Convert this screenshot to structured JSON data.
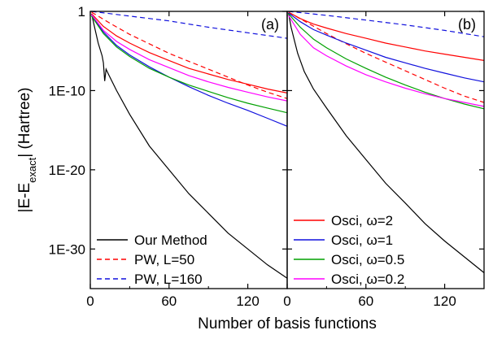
{
  "chart_data": {
    "type": "line",
    "xlabel": "Number of basis functions",
    "ylabel_parts": {
      "main": "|E-E",
      "sub": "exact",
      "tail": "| (Hartree)"
    },
    "xlim": [
      0,
      150
    ],
    "ylim_log10": [
      -35,
      0
    ],
    "y_scale": "log",
    "x_ticks": [
      0,
      60,
      120
    ],
    "y_ticks": [
      {
        "exp": 0,
        "label": "1"
      },
      {
        "exp": -10,
        "label": "1E-10"
      },
      {
        "exp": -20,
        "label": "1E-20"
      },
      {
        "exp": -30,
        "label": "1E-30"
      }
    ],
    "colors": {
      "black": "#000000",
      "red": "#ff0000",
      "blue": "#1010dd",
      "green": "#00a000",
      "magenta": "#ff00ff"
    },
    "panels": [
      {
        "label": "(a)",
        "legend_position": "bottom-left",
        "series": [
          {
            "name": "Our Method",
            "color": "#000000",
            "dash": "solid",
            "points": [
              [
                1,
                -0.3
              ],
              [
                3,
                -1.8
              ],
              [
                6,
                -4.0
              ],
              [
                9,
                -5.6
              ],
              [
                10,
                -6.5
              ],
              [
                11,
                -8.8
              ],
              [
                12,
                -7.3
              ],
              [
                14,
                -8.0
              ],
              [
                20,
                -10.0
              ],
              [
                30,
                -13.0
              ],
              [
                45,
                -17.0
              ],
              [
                60,
                -20.0
              ],
              [
                75,
                -23.0
              ],
              [
                90,
                -25.5
              ],
              [
                105,
                -28.0
              ],
              [
                120,
                -30.0
              ],
              [
                135,
                -32.0
              ],
              [
                150,
                -33.7
              ]
            ]
          },
          {
            "name": "PW, L=50",
            "color": "#ff0000",
            "dash": "dashed",
            "points": [
              [
                1,
                -0.1
              ],
              [
                15,
                -1.5
              ],
              [
                30,
                -2.9
              ],
              [
                45,
                -4.1
              ],
              [
                60,
                -5.3
              ],
              [
                75,
                -6.3
              ],
              [
                90,
                -7.3
              ],
              [
                105,
                -8.3
              ],
              [
                120,
                -9.3
              ],
              [
                135,
                -10.2
              ],
              [
                150,
                -11.0
              ]
            ]
          },
          {
            "name": "PW, L=160",
            "color": "#1010dd",
            "dash": "dashed",
            "points": [
              [
                1,
                0.0
              ],
              [
                30,
                -0.6
              ],
              [
                60,
                -1.2
              ],
              [
                90,
                -2.0
              ],
              [
                120,
                -2.7
              ],
              [
                150,
                -3.4
              ]
            ]
          },
          {
            "name": "",
            "color": "#ff0000",
            "dash": "solid",
            "points": [
              [
                1,
                -0.3
              ],
              [
                10,
                -1.9
              ],
              [
                20,
                -3.1
              ],
              [
                30,
                -4.0
              ],
              [
                45,
                -5.2
              ],
              [
                60,
                -6.2
              ],
              [
                75,
                -7.2
              ],
              [
                90,
                -7.9
              ],
              [
                105,
                -8.6
              ],
              [
                120,
                -9.2
              ],
              [
                135,
                -9.8
              ],
              [
                150,
                -10.3
              ]
            ]
          },
          {
            "name": "",
            "color": "#1010dd",
            "dash": "solid",
            "points": [
              [
                1,
                -0.5
              ],
              [
                10,
                -2.6
              ],
              [
                20,
                -4.3
              ],
              [
                30,
                -5.5
              ],
              [
                45,
                -7.0
              ],
              [
                60,
                -8.3
              ],
              [
                75,
                -9.5
              ],
              [
                90,
                -10.6
              ],
              [
                105,
                -11.6
              ],
              [
                120,
                -12.5
              ],
              [
                135,
                -13.5
              ],
              [
                150,
                -14.5
              ]
            ]
          },
          {
            "name": "",
            "color": "#00a000",
            "dash": "solid",
            "points": [
              [
                1,
                -0.6
              ],
              [
                10,
                -2.8
              ],
              [
                20,
                -4.5
              ],
              [
                30,
                -5.7
              ],
              [
                45,
                -7.2
              ],
              [
                60,
                -8.3
              ],
              [
                75,
                -9.3
              ],
              [
                90,
                -10.1
              ],
              [
                105,
                -10.9
              ],
              [
                120,
                -11.6
              ],
              [
                135,
                -12.2
              ],
              [
                150,
                -12.8
              ]
            ]
          },
          {
            "name": "",
            "color": "#ff00ff",
            "dash": "solid",
            "points": [
              [
                1,
                -0.4
              ],
              [
                10,
                -2.4
              ],
              [
                20,
                -3.8
              ],
              [
                30,
                -4.8
              ],
              [
                45,
                -6.1
              ],
              [
                60,
                -7.1
              ],
              [
                75,
                -8.1
              ],
              [
                90,
                -8.9
              ],
              [
                105,
                -9.6
              ],
              [
                120,
                -10.2
              ],
              [
                135,
                -10.8
              ],
              [
                150,
                -11.3
              ]
            ]
          }
        ]
      },
      {
        "label": "(b)",
        "legend_position": "bottom-left",
        "series": [
          {
            "name": "",
            "color": "#000000",
            "dash": "solid",
            "points": [
              [
                1,
                -0.2
              ],
              [
                3,
                -2.0
              ],
              [
                6,
                -4.0
              ],
              [
                8,
                -5.3
              ],
              [
                10,
                -6.2
              ],
              [
                13,
                -7.6
              ],
              [
                20,
                -9.8
              ],
              [
                30,
                -12.2
              ],
              [
                45,
                -15.7
              ],
              [
                60,
                -18.7
              ],
              [
                75,
                -21.7
              ],
              [
                90,
                -24.2
              ],
              [
                105,
                -26.8
              ],
              [
                120,
                -29.0
              ],
              [
                135,
                -31.0
              ],
              [
                150,
                -33.0
              ]
            ]
          },
          {
            "name": "",
            "color": "#ff0000",
            "dash": "dashed",
            "points": [
              [
                1,
                -0.1
              ],
              [
                15,
                -1.4
              ],
              [
                30,
                -2.8
              ],
              [
                45,
                -4.1
              ],
              [
                60,
                -5.3
              ],
              [
                75,
                -6.4
              ],
              [
                90,
                -7.5
              ],
              [
                105,
                -8.6
              ],
              [
                120,
                -9.7
              ],
              [
                135,
                -10.7
              ],
              [
                150,
                -11.5
              ]
            ]
          },
          {
            "name": "",
            "color": "#1010dd",
            "dash": "dashed",
            "points": [
              [
                1,
                0.0
              ],
              [
                30,
                -0.5
              ],
              [
                60,
                -1.1
              ],
              [
                90,
                -1.7
              ],
              [
                120,
                -2.4
              ],
              [
                150,
                -3.2
              ]
            ]
          },
          {
            "name": "Osci, ω=2",
            "color": "#ff0000",
            "dash": "solid",
            "points": [
              [
                1,
                -0.1
              ],
              [
                10,
                -0.9
              ],
              [
                20,
                -1.6
              ],
              [
                30,
                -2.1
              ],
              [
                45,
                -2.8
              ],
              [
                60,
                -3.4
              ],
              [
                75,
                -4.0
              ],
              [
                90,
                -4.5
              ],
              [
                105,
                -5.0
              ],
              [
                120,
                -5.4
              ],
              [
                135,
                -5.8
              ],
              [
                150,
                -6.2
              ]
            ]
          },
          {
            "name": "Osci, ω=1",
            "color": "#1010dd",
            "dash": "solid",
            "points": [
              [
                1,
                -0.2
              ],
              [
                10,
                -1.3
              ],
              [
                20,
                -2.3
              ],
              [
                30,
                -3.0
              ],
              [
                45,
                -4.0
              ],
              [
                60,
                -4.9
              ],
              [
                75,
                -5.8
              ],
              [
                90,
                -6.5
              ],
              [
                105,
                -7.2
              ],
              [
                120,
                -7.8
              ],
              [
                135,
                -8.4
              ],
              [
                150,
                -8.9
              ]
            ]
          },
          {
            "name": "Osci, ω=0.5",
            "color": "#00a000",
            "dash": "solid",
            "points": [
              [
                1,
                -0.3
              ],
              [
                10,
                -2.0
              ],
              [
                20,
                -3.5
              ],
              [
                30,
                -4.6
              ],
              [
                45,
                -6.0
              ],
              [
                60,
                -7.2
              ],
              [
                75,
                -8.3
              ],
              [
                90,
                -9.3
              ],
              [
                105,
                -10.2
              ],
              [
                120,
                -11.0
              ],
              [
                135,
                -11.7
              ],
              [
                150,
                -12.3
              ]
            ]
          },
          {
            "name": "Osci, ω=0.2",
            "color": "#ff00ff",
            "dash": "solid",
            "points": [
              [
                1,
                -0.5
              ],
              [
                10,
                -2.9
              ],
              [
                20,
                -4.6
              ],
              [
                30,
                -5.6
              ],
              [
                45,
                -6.9
              ],
              [
                60,
                -8.0
              ],
              [
                75,
                -8.9
              ],
              [
                90,
                -9.7
              ],
              [
                105,
                -10.4
              ],
              [
                120,
                -11.0
              ],
              [
                135,
                -11.5
              ],
              [
                150,
                -12.0
              ]
            ]
          }
        ]
      }
    ]
  }
}
